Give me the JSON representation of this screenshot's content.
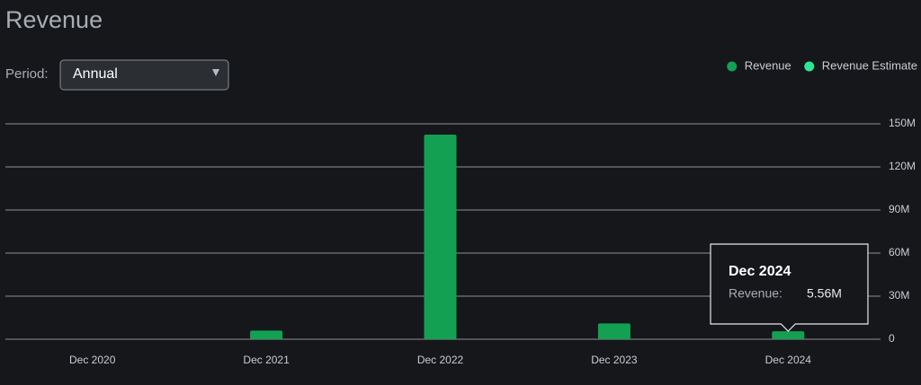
{
  "header": {
    "title": "Revenue"
  },
  "controls": {
    "period_label": "Period:",
    "period_value": "Annual"
  },
  "chart_data": {
    "type": "bar",
    "categories": [
      "Dec 2020",
      "Dec 2021",
      "Dec 2022",
      "Dec 2023",
      "Dec 2024"
    ],
    "series": [
      {
        "name": "Revenue",
        "color": "#14a052",
        "values": [
          0,
          6000000,
          142500000,
          11000000,
          5560000
        ]
      },
      {
        "name": "Revenue Estimate",
        "color": "#2fe596",
        "values": [
          null,
          null,
          null,
          null,
          null
        ]
      }
    ],
    "ylim": [
      0,
      150000000
    ],
    "yticks": [
      0,
      {
        "value": 30000000,
        "label": "30M"
      },
      {
        "value": 60000000,
        "label": "60M"
      },
      {
        "value": 90000000,
        "label": "90M"
      },
      {
        "value": 120000000,
        "label": "120M"
      },
      {
        "value": 150000000,
        "label": "150M"
      }
    ],
    "grid": true,
    "legend": "top-right"
  },
  "tooltip": {
    "title": "Dec 2024",
    "label": "Revenue:",
    "value": "5.56M"
  }
}
